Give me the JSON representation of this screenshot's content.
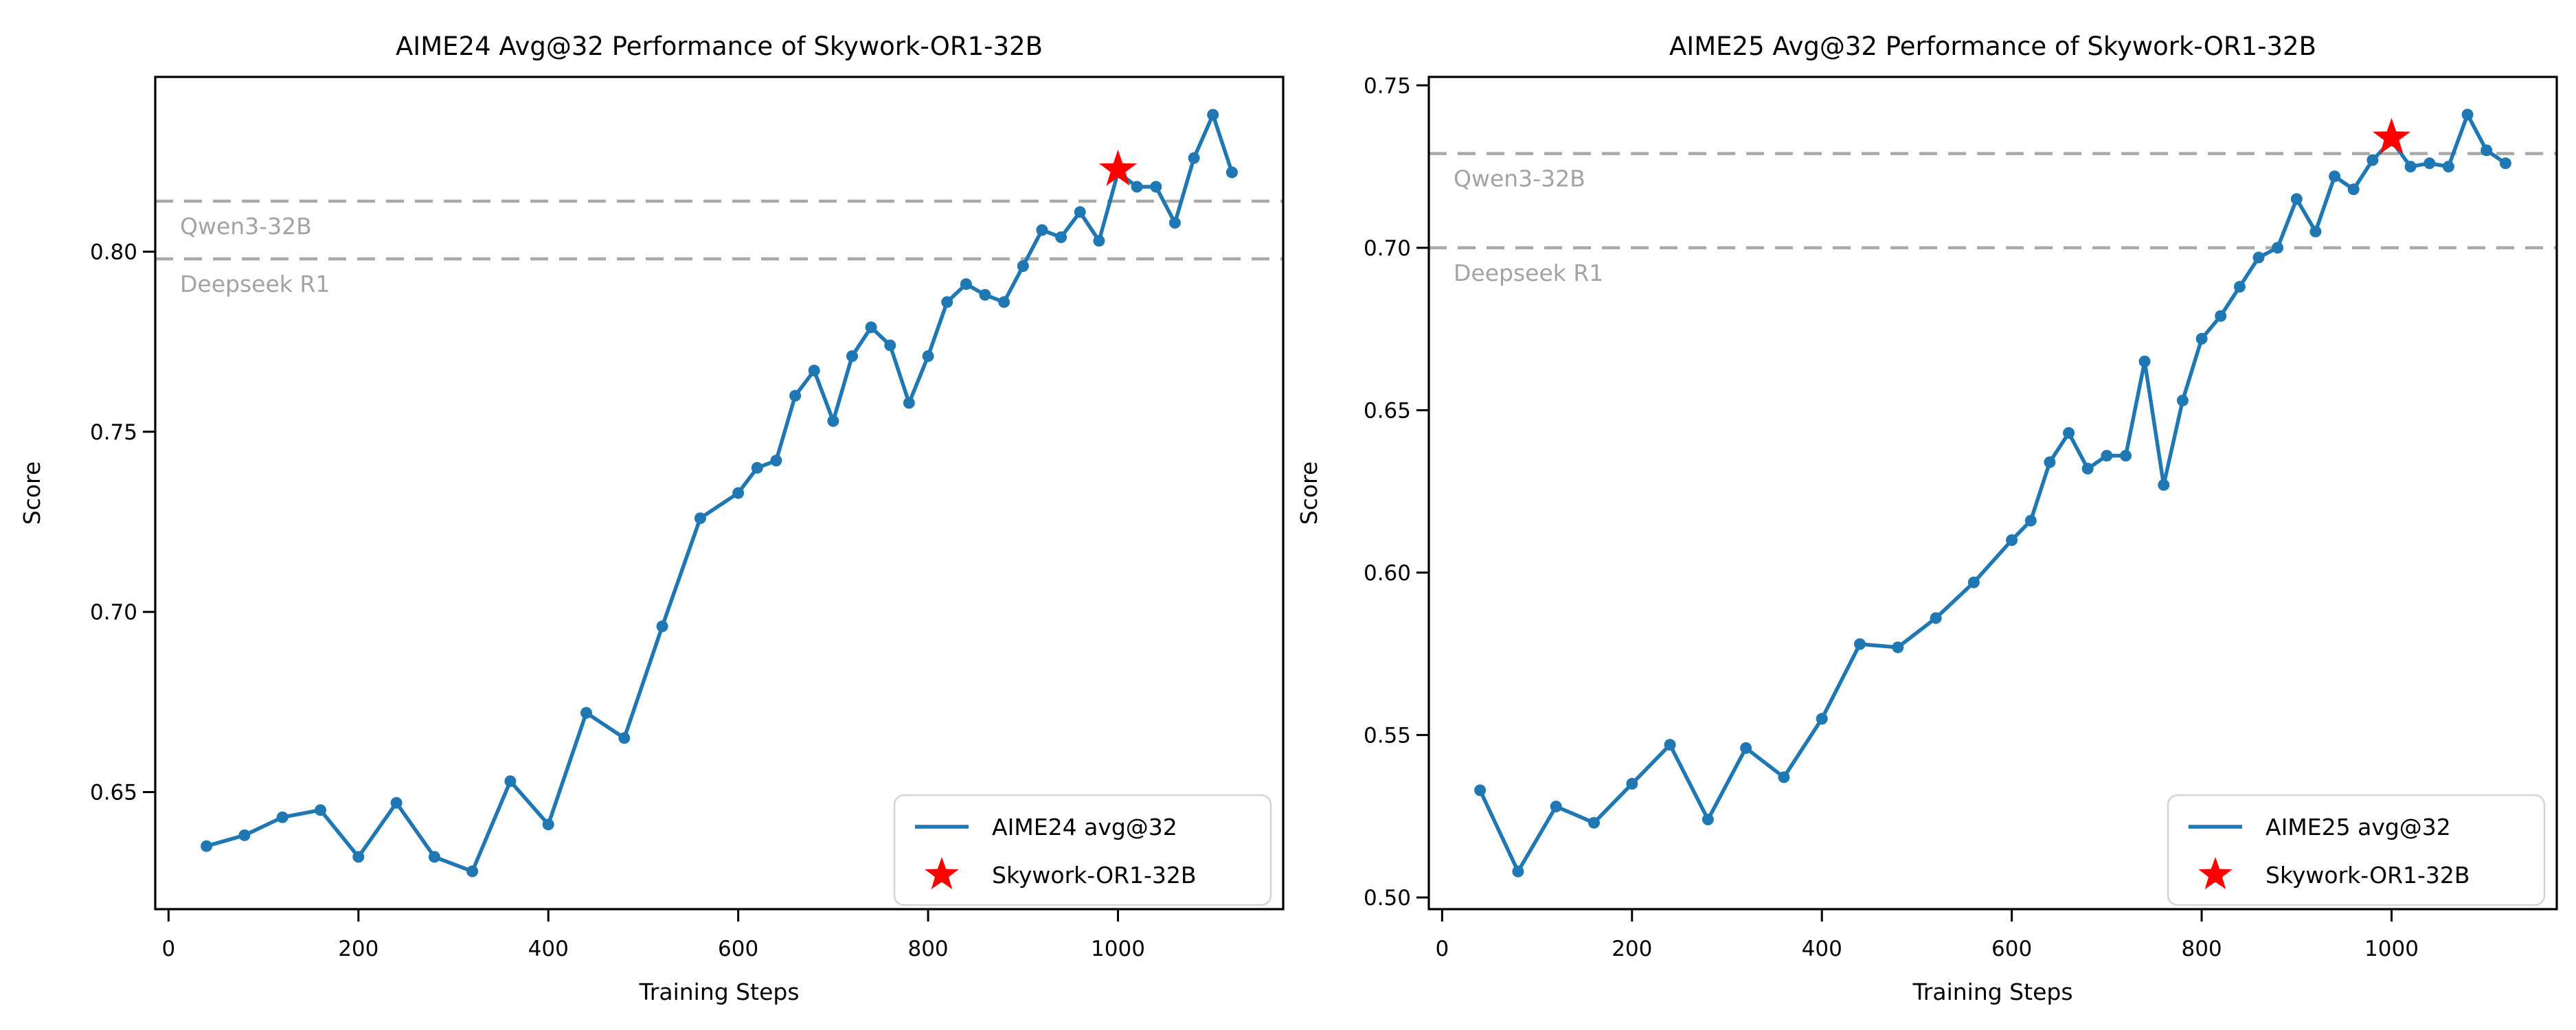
{
  "page": {
    "background": "#ffffff"
  },
  "colors": {
    "series_line": "#1f77b4",
    "marker": "#1f77b4",
    "star": "#ff0000",
    "baseline_dash": "#a9a9a9",
    "baseline_label": "#a3a3a3",
    "axis": "#000000",
    "tick_label": "#000000",
    "legend_border": "#d4d4d4",
    "legend_bg": "#ffffff"
  },
  "chart_data": [
    {
      "type": "line",
      "title": "AIME24 Avg@32 Performance of Skywork-OR1-32B",
      "xlabel": "Training Steps",
      "ylabel": "Score",
      "xlim": [
        -14,
        1174
      ],
      "ylim": [
        0.6175,
        0.8485
      ],
      "grid": "off",
      "legend_position": "lower right",
      "x_ticks": [
        0,
        200,
        400,
        600,
        800,
        1000
      ],
      "x_tick_labels": [
        "0",
        "200",
        "400",
        "600",
        "800",
        "1000"
      ],
      "y_ticks": [
        0.65,
        0.7,
        0.75,
        0.8
      ],
      "y_tick_labels": [
        "0.65",
        "0.70",
        "0.75",
        "0.80"
      ],
      "series": [
        {
          "name": "AIME24 avg@32",
          "x": [
            40,
            80,
            120,
            160,
            200,
            240,
            280,
            320,
            360,
            400,
            440,
            480,
            520,
            560,
            600,
            620,
            640,
            660,
            680,
            700,
            720,
            740,
            760,
            780,
            800,
            820,
            840,
            860,
            880,
            900,
            920,
            940,
            960,
            980,
            1000,
            1020,
            1040,
            1060,
            1080,
            1100,
            1120
          ],
          "y": [
            0.635,
            0.638,
            0.643,
            0.645,
            0.632,
            0.647,
            0.632,
            0.628,
            0.653,
            0.641,
            0.672,
            0.665,
            0.696,
            0.726,
            0.733,
            0.74,
            0.742,
            0.76,
            0.767,
            0.753,
            0.771,
            0.779,
            0.774,
            0.758,
            0.771,
            0.786,
            0.791,
            0.788,
            0.786,
            0.796,
            0.806,
            0.804,
            0.811,
            0.803,
            0.822,
            0.818,
            0.818,
            0.808,
            0.826,
            0.838,
            0.822
          ]
        }
      ],
      "star_point": {
        "x": 1000,
        "y": 0.822,
        "label": "Skywork-OR1-32B"
      },
      "baselines": [
        {
          "label": "Qwen3-32B",
          "value": 0.814
        },
        {
          "label": "Deepseek R1",
          "value": 0.798
        }
      ],
      "legend": [
        {
          "type": "line",
          "label": "AIME24 avg@32"
        },
        {
          "type": "star",
          "label": "Skywork-OR1-32B"
        }
      ]
    },
    {
      "type": "line",
      "title": "AIME25 Avg@32 Performance of Skywork-OR1-32B",
      "xlabel": "Training Steps",
      "ylabel": "Score",
      "xlim": [
        -14,
        1174
      ],
      "ylim": [
        0.4964,
        0.7526
      ],
      "grid": "off",
      "legend_position": "lower right",
      "x_ticks": [
        0,
        200,
        400,
        600,
        800,
        1000
      ],
      "x_tick_labels": [
        "0",
        "200",
        "400",
        "600",
        "800",
        "1000"
      ],
      "y_ticks": [
        0.5,
        0.55,
        0.6,
        0.65,
        0.7,
        0.75
      ],
      "y_tick_labels": [
        "0.50",
        "0.55",
        "0.60",
        "0.65",
        "0.70",
        "0.75"
      ],
      "series": [
        {
          "name": "AIME25 avg@32",
          "x": [
            40,
            80,
            120,
            160,
            200,
            240,
            280,
            320,
            360,
            400,
            440,
            480,
            520,
            560,
            600,
            620,
            640,
            660,
            680,
            700,
            720,
            740,
            760,
            780,
            800,
            820,
            840,
            860,
            880,
            900,
            920,
            940,
            960,
            980,
            1000,
            1020,
            1040,
            1060,
            1080,
            1100,
            1120
          ],
          "y": [
            0.533,
            0.508,
            0.528,
            0.523,
            0.535,
            0.547,
            0.524,
            0.546,
            0.537,
            0.555,
            0.578,
            0.577,
            0.586,
            0.597,
            0.61,
            0.616,
            0.634,
            0.643,
            0.632,
            0.636,
            0.636,
            0.665,
            0.627,
            0.653,
            0.672,
            0.679,
            0.688,
            0.697,
            0.7,
            0.715,
            0.705,
            0.722,
            0.718,
            0.727,
            0.733,
            0.725,
            0.726,
            0.725,
            0.741,
            0.73,
            0.726
          ]
        }
      ],
      "star_point": {
        "x": 1000,
        "y": 0.733,
        "label": "Skywork-OR1-32B"
      },
      "baselines": [
        {
          "label": "Qwen3-32B",
          "value": 0.729
        },
        {
          "label": "Deepseek R1",
          "value": 0.7
        }
      ],
      "legend": [
        {
          "type": "line",
          "label": "AIME25 avg@32"
        },
        {
          "type": "star",
          "label": "Skywork-OR1-32B"
        }
      ]
    }
  ]
}
